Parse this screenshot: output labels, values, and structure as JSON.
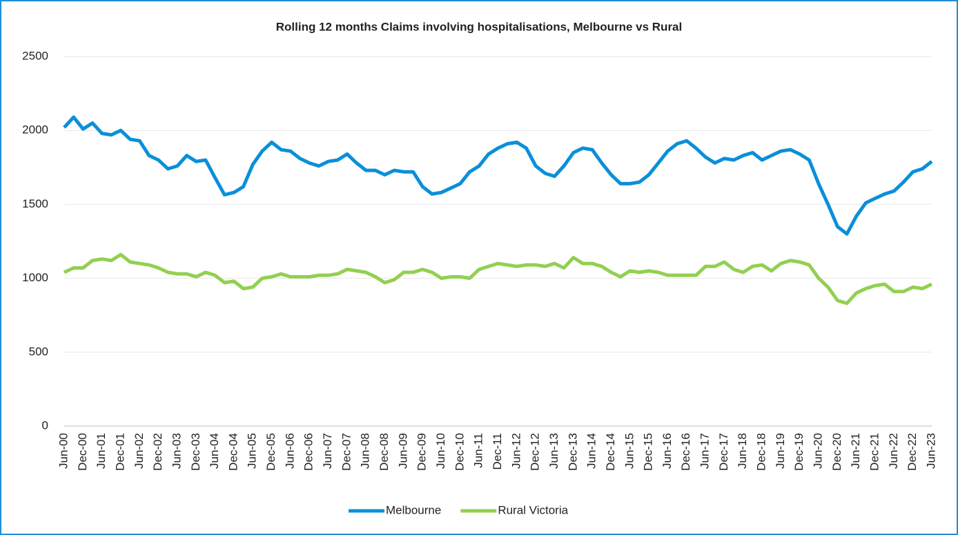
{
  "chart_data": {
    "type": "line",
    "title": "Rolling 12 months Claims involving hospitalisations, Melbourne vs Rural",
    "categories": [
      "Jun-00",
      null,
      "Dec-00",
      null,
      "Jun-01",
      null,
      "Dec-01",
      null,
      "Jun-02",
      null,
      "Dec-02",
      null,
      "Jun-03",
      null,
      "Dec-03",
      null,
      "Jun-04",
      null,
      "Dec-04",
      null,
      "Jun-05",
      null,
      "Dec-05",
      null,
      "Jun-06",
      null,
      "Dec-06",
      null,
      "Jun-07",
      null,
      "Dec-07",
      null,
      "Jun-08",
      null,
      "Dec-08",
      null,
      "Jun-09",
      null,
      "Dec-09",
      null,
      "Jun-10",
      null,
      "Dec-10",
      null,
      "Jun-11",
      null,
      "Dec-11",
      null,
      "Jun-12",
      null,
      "Dec-12",
      null,
      "Jun-13",
      null,
      "Dec-13",
      null,
      "Jun-14",
      null,
      "Dec-14",
      null,
      "Jun-15",
      null,
      "Dec-15",
      null,
      "Jun-16",
      null,
      "Dec-16",
      null,
      "Jun-17",
      null,
      "Dec-17",
      null,
      "Jun-18",
      null,
      "Dec-18",
      null,
      "Jun-19",
      null,
      "Dec-19",
      null,
      "Jun-20",
      null,
      "Dec-20",
      null,
      "Jun-21",
      null,
      "Dec-21",
      null,
      "Jun-22",
      null,
      "Dec-22",
      null,
      "Jun-23"
    ],
    "series": [
      {
        "name": "Melbourne",
        "color": "#0b8fd9",
        "values": [
          2020,
          2090,
          2010,
          2050,
          1980,
          1970,
          2000,
          1940,
          1930,
          1830,
          1800,
          1740,
          1760,
          1830,
          1790,
          1800,
          1680,
          1565,
          1580,
          1620,
          1770,
          1860,
          1920,
          1870,
          1860,
          1810,
          1780,
          1760,
          1790,
          1800,
          1840,
          1780,
          1730,
          1730,
          1700,
          1730,
          1720,
          1720,
          1620,
          1570,
          1580,
          1610,
          1640,
          1720,
          1760,
          1840,
          1880,
          1910,
          1920,
          1880,
          1760,
          1710,
          1690,
          1760,
          1850,
          1880,
          1870,
          1780,
          1700,
          1640,
          1640,
          1650,
          1700,
          1780,
          1860,
          1910,
          1930,
          1880,
          1820,
          1780,
          1810,
          1800,
          1830,
          1850,
          1800,
          1830,
          1860,
          1870,
          1840,
          1800,
          1640,
          1500,
          1350,
          1300,
          1420,
          1510,
          1540,
          1570,
          1590,
          1650,
          1720,
          1740,
          1790
        ]
      },
      {
        "name": "Rural Victoria",
        "color": "#92d050",
        "values": [
          1040,
          1070,
          1070,
          1120,
          1130,
          1120,
          1160,
          1110,
          1100,
          1090,
          1070,
          1040,
          1030,
          1030,
          1010,
          1040,
          1020,
          970,
          980,
          930,
          940,
          1000,
          1010,
          1030,
          1010,
          1010,
          1010,
          1020,
          1020,
          1030,
          1060,
          1050,
          1040,
          1010,
          970,
          990,
          1040,
          1040,
          1060,
          1040,
          1000,
          1010,
          1010,
          1000,
          1060,
          1080,
          1100,
          1090,
          1080,
          1090,
          1090,
          1080,
          1100,
          1070,
          1140,
          1100,
          1100,
          1080,
          1040,
          1010,
          1050,
          1040,
          1050,
          1040,
          1020,
          1020,
          1020,
          1020,
          1080,
          1080,
          1110,
          1060,
          1040,
          1080,
          1090,
          1050,
          1100,
          1120,
          1110,
          1090,
          1000,
          940,
          850,
          830,
          900,
          930,
          950,
          960,
          910,
          910,
          940,
          930,
          960
        ]
      }
    ],
    "ylim": [
      0,
      2500
    ],
    "yticks": [
      0,
      500,
      1000,
      1500,
      2000,
      2500
    ],
    "grid": true,
    "legend": "bottom"
  }
}
